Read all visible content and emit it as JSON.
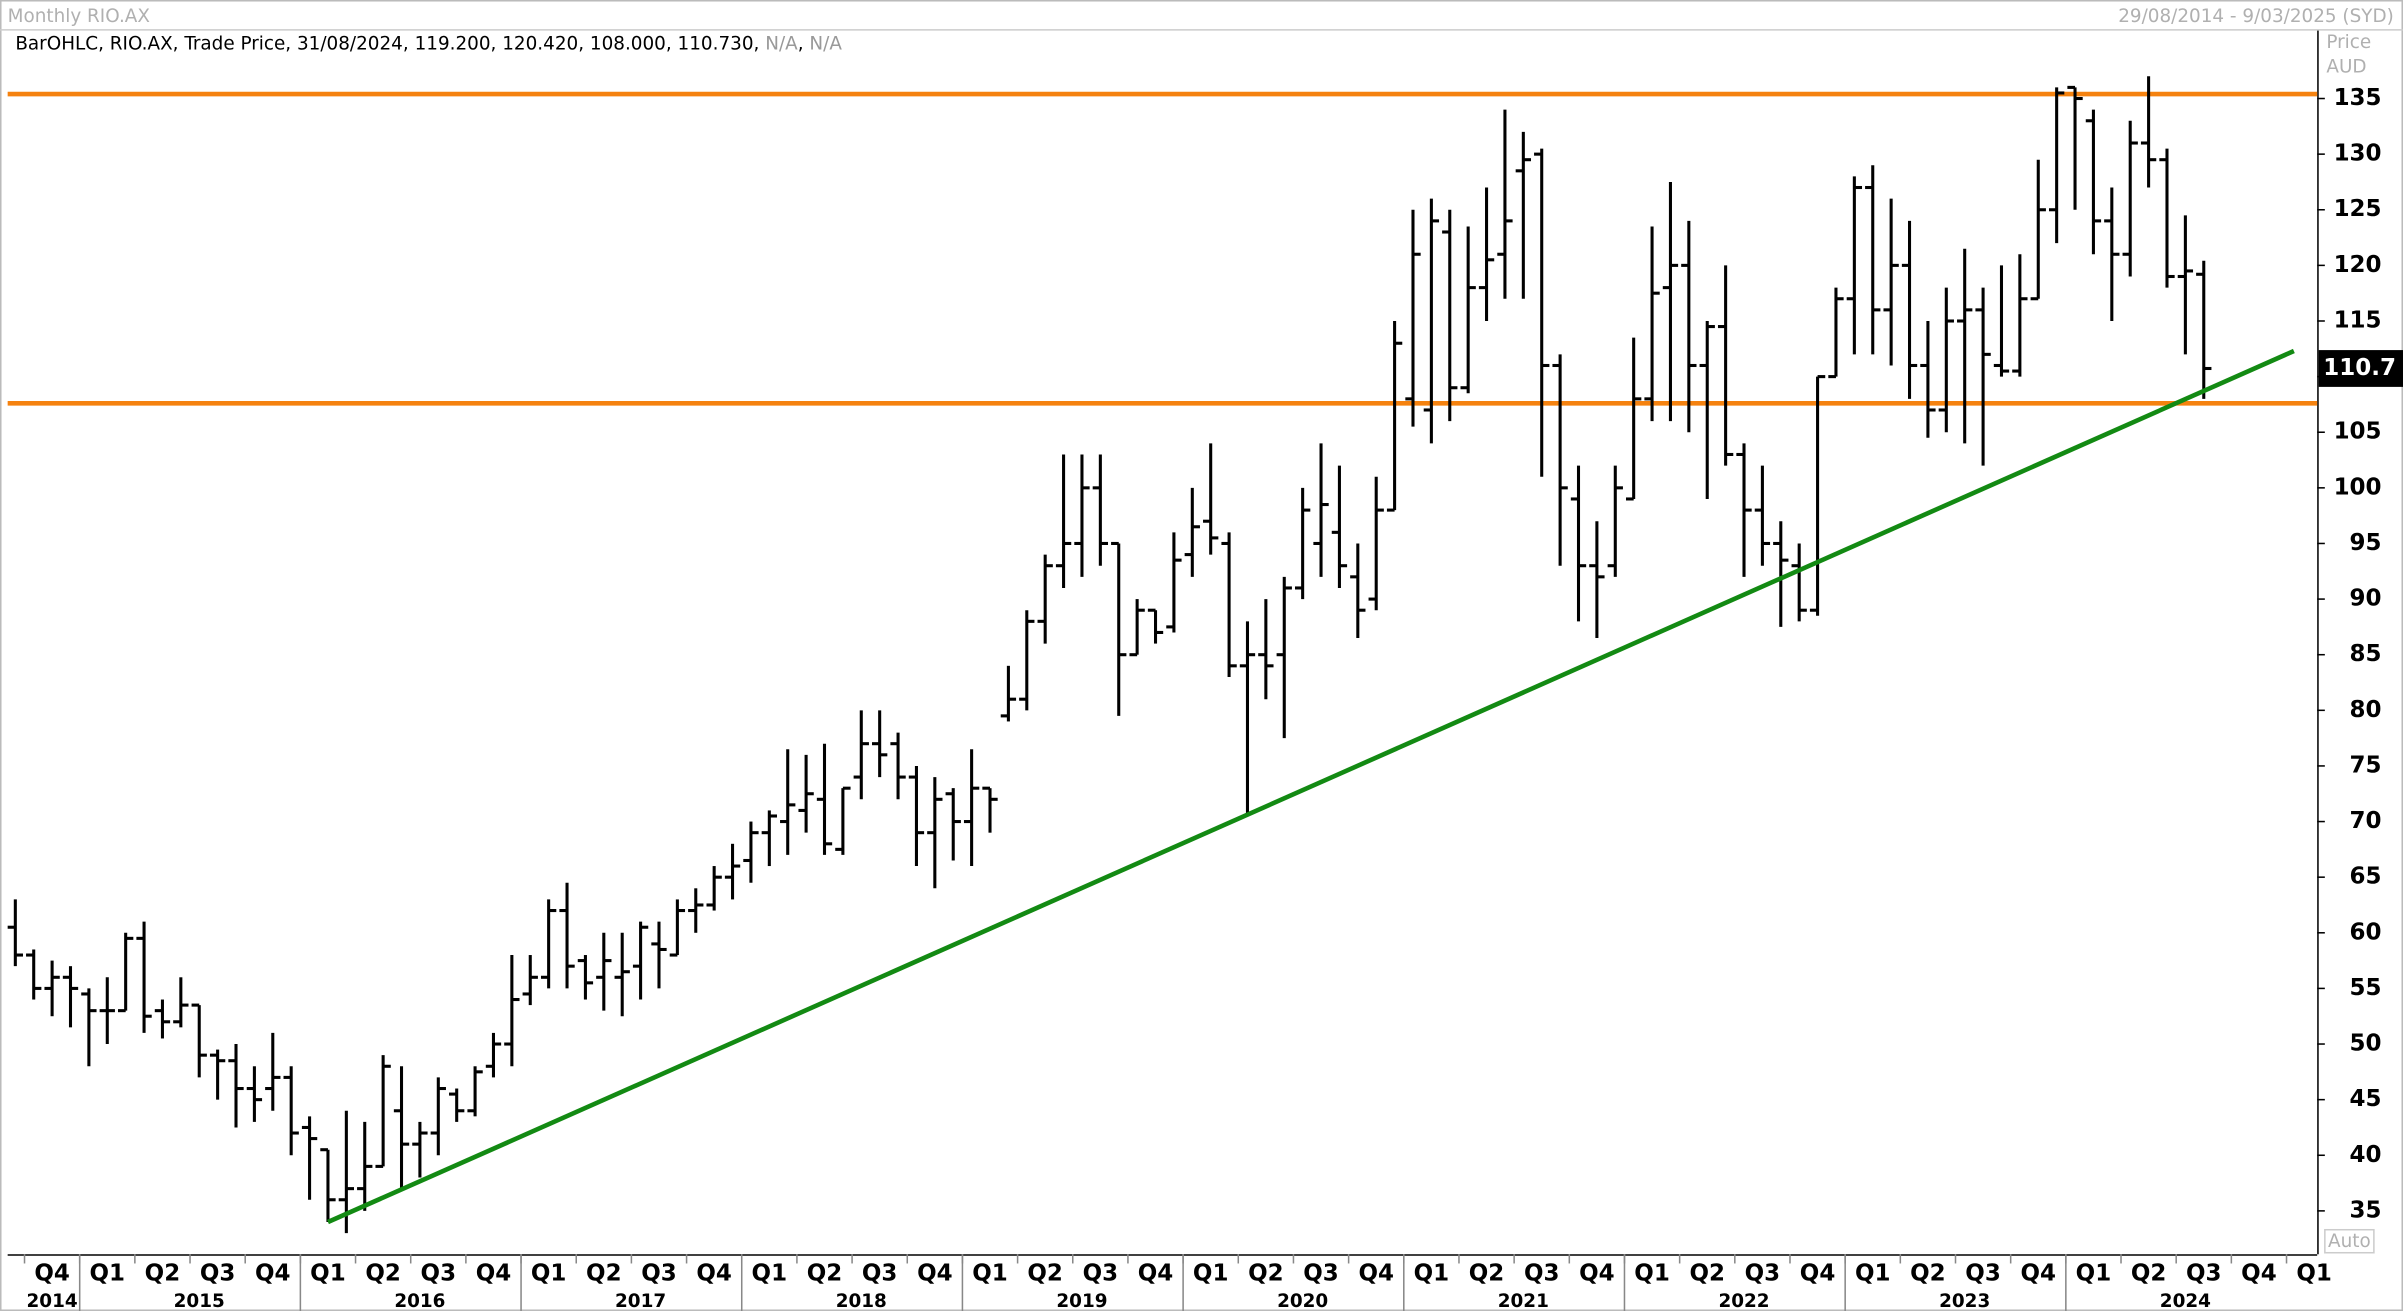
{
  "chart_data": {
    "type": "ohlc",
    "title": "Monthly RIO.AX",
    "date_range": "29/08/2014 - 9/03/2025 (SYD)",
    "legend_fields": [
      "BarOHLC",
      "RIO.AX",
      "Trade Price",
      "31/08/2024"
    ],
    "last_labels": [
      "119.200",
      "120.420",
      "108.000",
      "110.730"
    ],
    "legend_na": [
      "N/A",
      "N/A"
    ],
    "axis_title": [
      "Price",
      "AUD"
    ],
    "price_tag": "110.7",
    "scale_mode": "Auto",
    "open": [
      60.5,
      58,
      55,
      56,
      54.5,
      53,
      53,
      59.5,
      53,
      52,
      53.5,
      49,
      48.5,
      46,
      46,
      47,
      42.5,
      40.5,
      36,
      37,
      39,
      44,
      41,
      42,
      45.5,
      44,
      48,
      50,
      54.5,
      56,
      62,
      57.5,
      56,
      56,
      57,
      59,
      58,
      62,
      62.5,
      65,
      66.5,
      69,
      70,
      71,
      72,
      67.5,
      74,
      77,
      77,
      74,
      69,
      72.5,
      70,
      73,
      79.5,
      81,
      88,
      93,
      95,
      100,
      95,
      85,
      89,
      87.5,
      94,
      97,
      95,
      84,
      85,
      85,
      91,
      95,
      96,
      92,
      90,
      98,
      108,
      107,
      123,
      109,
      118,
      121,
      128.5,
      130,
      111,
      99,
      93,
      93,
      99,
      108,
      118,
      120,
      111,
      114.5,
      103,
      98,
      95,
      93,
      89,
      110,
      117,
      127,
      116,
      120,
      111,
      107,
      115,
      116,
      111,
      110.5,
      117,
      125,
      136,
      133,
      124,
      121,
      131,
      129.5,
      119,
      119.2
    ],
    "high": [
      63,
      58.5,
      57.5,
      57,
      55,
      56,
      60,
      61,
      54,
      56,
      53.5,
      49.5,
      50,
      48,
      51,
      48,
      43.5,
      40.5,
      44,
      43,
      49,
      48,
      43,
      47,
      46,
      48,
      51,
      58,
      58,
      63,
      64.5,
      58,
      60,
      60,
      61,
      61,
      63,
      64,
      66,
      68,
      70,
      71,
      76.5,
      76,
      77,
      73,
      80,
      80,
      78,
      75,
      74,
      73,
      76.5,
      73,
      84,
      89,
      94,
      103,
      103,
      103,
      95,
      90,
      89,
      96,
      100,
      104,
      96,
      88,
      90,
      92,
      100,
      104,
      102,
      95,
      101,
      115,
      125,
      126,
      125,
      123.5,
      127,
      134,
      132,
      130.5,
      112,
      102,
      97,
      102,
      113.5,
      123.5,
      127.5,
      124,
      115,
      120,
      104,
      102,
      97,
      95,
      110,
      118,
      128,
      129,
      126,
      124,
      115,
      118,
      121.5,
      118,
      120,
      121,
      129.5,
      136,
      136,
      134,
      127,
      133,
      137,
      130.5,
      124.5,
      120.42
    ],
    "low": [
      57,
      54,
      52.5,
      51.5,
      48,
      50,
      53,
      51,
      50.5,
      51.5,
      47,
      45,
      42.5,
      43,
      44,
      40,
      36,
      34,
      33,
      35,
      39,
      37,
      38,
      40,
      43,
      43.5,
      47,
      48,
      53.5,
      55,
      55,
      54,
      53,
      52.5,
      54,
      55,
      58,
      60,
      62,
      63,
      64.5,
      66,
      67,
      69,
      67,
      67,
      72,
      74,
      72,
      66,
      64,
      66.5,
      66,
      69,
      79,
      80,
      86,
      91,
      92,
      93,
      79.5,
      85,
      86,
      87,
      92,
      94,
      83,
      70.5,
      81,
      77.5,
      90,
      92,
      91,
      86.5,
      89,
      98,
      105.5,
      104,
      106,
      108.5,
      115,
      117,
      117,
      101,
      93,
      88,
      86.5,
      92,
      99,
      106,
      106,
      105,
      99,
      102,
      92,
      93,
      87.5,
      88,
      88.5,
      110,
      112,
      112,
      111,
      108,
      104.5,
      105,
      104,
      102,
      110,
      110,
      117,
      122,
      125,
      121,
      115,
      119,
      127,
      118,
      112,
      108
    ],
    "close": [
      58,
      55,
      56,
      55,
      53,
      53,
      59.5,
      52.5,
      52,
      53.5,
      49,
      48.5,
      46,
      45,
      47,
      42,
      41.5,
      36,
      37,
      39,
      48,
      41,
      42,
      46,
      44,
      47.5,
      50,
      54,
      56,
      62,
      57,
      55.5,
      57.5,
      56.5,
      60.5,
      58.5,
      62,
      62.5,
      65,
      66,
      69,
      70.5,
      71.5,
      72.5,
      68,
      73,
      77,
      76,
      74,
      69,
      72,
      70,
      73,
      72,
      81,
      88,
      93,
      95,
      100,
      95,
      85,
      89,
      87,
      93.5,
      96.5,
      95.5,
      84,
      85,
      84,
      91,
      98,
      98.5,
      93,
      89,
      98,
      113,
      121,
      124,
      109,
      118,
      120.5,
      124,
      129.5,
      111,
      100,
      93,
      92,
      100,
      108,
      117.5,
      120,
      111,
      114.5,
      103,
      98,
      95,
      93.5,
      89,
      110,
      117,
      127,
      116,
      120,
      111,
      107,
      115,
      116,
      112,
      110.5,
      117,
      125,
      135.5,
      135,
      124,
      121,
      131,
      129.5,
      119,
      119.5,
      110.73
    ],
    "bar_color": "#000000",
    "quarters": [
      "Q4",
      "Q1",
      "Q2",
      "Q3",
      "Q4",
      "Q1",
      "Q2",
      "Q3",
      "Q4",
      "Q1",
      "Q2",
      "Q3",
      "Q4",
      "Q1",
      "Q2",
      "Q3",
      "Q4",
      "Q1",
      "Q2",
      "Q3",
      "Q4",
      "Q1",
      "Q2",
      "Q3",
      "Q4",
      "Q1",
      "Q2",
      "Q3",
      "Q4",
      "Q1",
      "Q2",
      "Q3",
      "Q4",
      "Q1",
      "Q2",
      "Q3",
      "Q4",
      "Q1",
      "Q2",
      "Q3",
      "Q4",
      "Q1"
    ],
    "years": [
      "2014",
      "2015",
      "2016",
      "2017",
      "2018",
      "2019",
      "2020",
      "2021",
      "2022",
      "2023",
      "2024"
    ],
    "ylim": [
      31.1,
      141.1
    ],
    "yticks": [
      35,
      40,
      45,
      50,
      55,
      60,
      65,
      70,
      75,
      80,
      85,
      90,
      95,
      100,
      105,
      110,
      115,
      120,
      125,
      130,
      135
    ],
    "hlines": [
      {
        "value": 135.4,
        "color": "#f5820f"
      },
      {
        "value": 107.6,
        "color": "#f5820f"
      }
    ],
    "trendline": {
      "x": [
        17,
        123.9
      ],
      "y": [
        34,
        112.3
      ],
      "color": "#138a13"
    }
  }
}
